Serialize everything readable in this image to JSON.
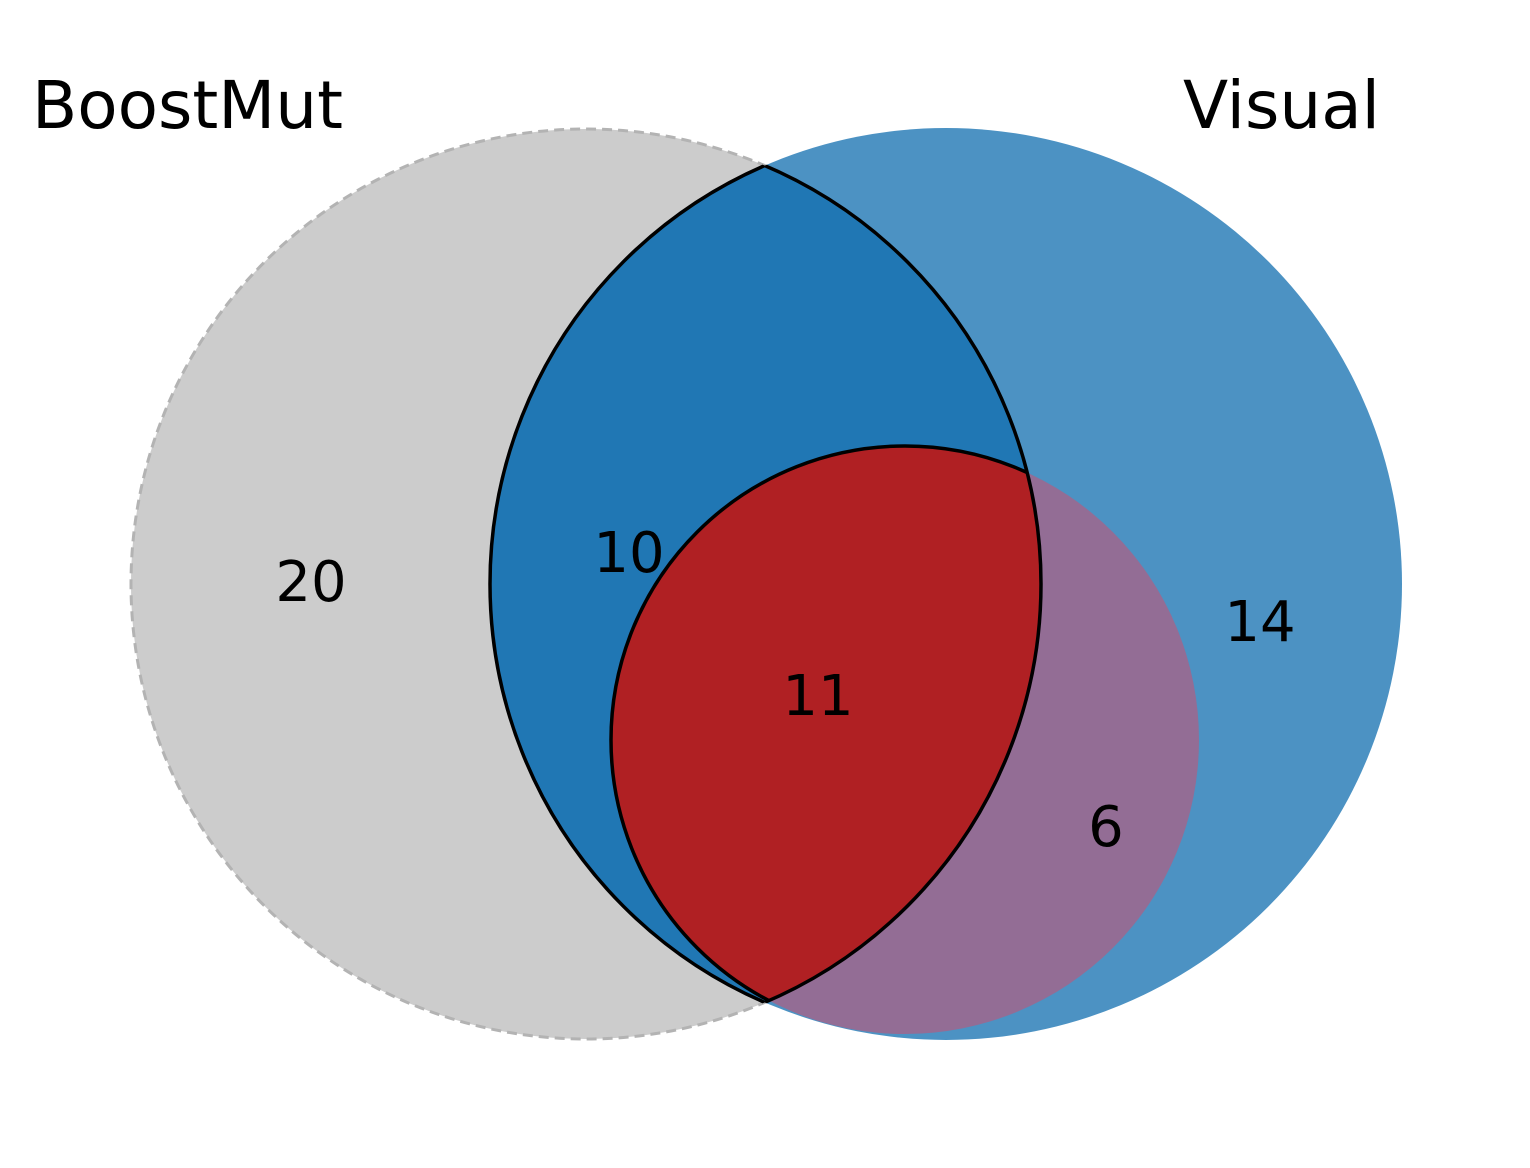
{
  "sets": [
    {
      "key": "boostmut",
      "label": "BoostMut",
      "color": "#cccccc"
    },
    {
      "key": "visual",
      "label": "Visual",
      "color": "#4c92c3"
    },
    {
      "key": "inner",
      "label": "",
      "color": "#936d95"
    }
  ],
  "regions": {
    "boostmut_only": {
      "count": "20",
      "color": "#cccccc"
    },
    "boostmut_visual": {
      "count": "10",
      "color": "#2077b4"
    },
    "all_three": {
      "count": "11",
      "color": "#b02023"
    },
    "visual_only": {
      "count": "14",
      "color": "#4c92c3"
    },
    "visual_inner": {
      "count": "6",
      "color": "#936d95"
    }
  }
}
